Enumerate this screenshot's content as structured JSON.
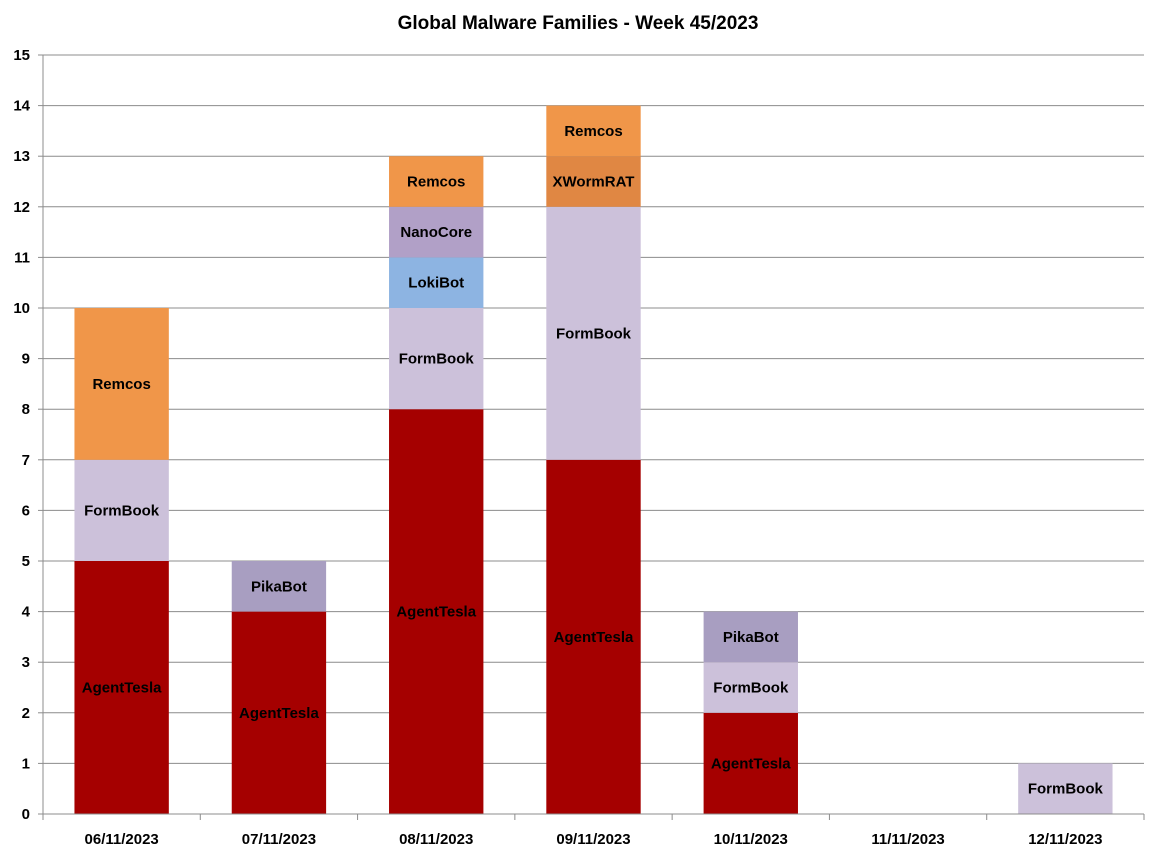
{
  "chart_data": {
    "type": "bar",
    "stacked": true,
    "title": "Global Malware Families - Week 45/2023",
    "xlabel": "",
    "ylabel": "",
    "ylim": [
      0,
      15
    ],
    "yticks": [
      0,
      1,
      2,
      3,
      4,
      5,
      6,
      7,
      8,
      9,
      10,
      11,
      12,
      13,
      14,
      15
    ],
    "grid": true,
    "legend": "none",
    "categories": [
      "06/11/2023",
      "07/11/2023",
      "08/11/2023",
      "09/11/2023",
      "10/11/2023",
      "11/11/2023",
      "12/11/2023"
    ],
    "segment_labels": "inside",
    "series": [
      {
        "name": "AgentTesla",
        "color": "#a50000",
        "values": [
          5,
          4,
          8,
          7,
          2,
          0,
          0
        ]
      },
      {
        "name": "FormBook",
        "color": "#ccc1da",
        "values": [
          2,
          0,
          2,
          5,
          1,
          0,
          1
        ]
      },
      {
        "name": "LokiBot",
        "color": "#8db4e2",
        "values": [
          0,
          0,
          1,
          0,
          0,
          0,
          0
        ]
      },
      {
        "name": "NanoCore",
        "color": "#b1a0c7",
        "values": [
          0,
          0,
          1,
          0,
          0,
          0,
          0
        ]
      },
      {
        "name": "PikaBot",
        "color": "#a89ec1",
        "values": [
          0,
          1,
          0,
          0,
          1,
          0,
          0
        ]
      },
      {
        "name": "XWormRAT",
        "color": "#e08743",
        "values": [
          0,
          0,
          0,
          1,
          0,
          0,
          0
        ]
      },
      {
        "name": "Remcos",
        "color": "#f09649",
        "values": [
          3,
          0,
          1,
          1,
          0,
          0,
          0
        ]
      }
    ]
  }
}
